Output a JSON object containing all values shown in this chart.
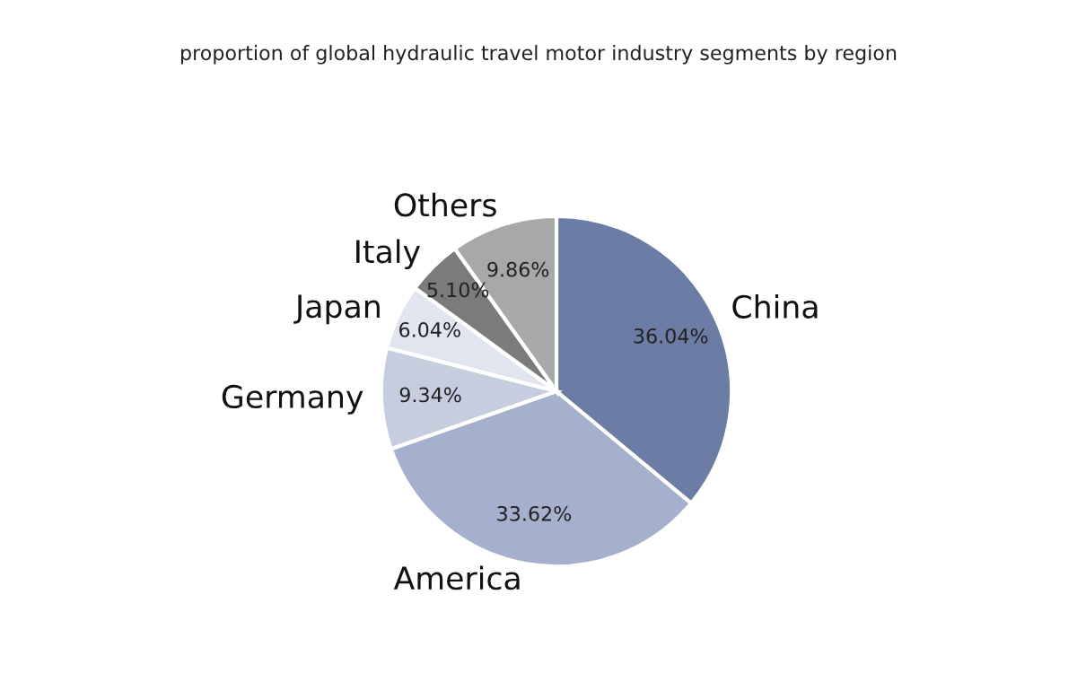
{
  "chart_data": {
    "type": "pie",
    "title": "proportion of global hydraulic travel motor industry segments by region",
    "categories": [
      "China",
      "America",
      "Germany",
      "Japan",
      "Italy",
      "Others"
    ],
    "values": [
      36.04,
      33.62,
      9.34,
      6.04,
      5.1,
      9.86
    ],
    "value_labels": [
      "36.04%",
      "33.62%",
      "9.34%",
      "6.04%",
      "5.10%",
      "9.86%"
    ],
    "colors": [
      "#6b7ca5",
      "#a5b0cc",
      "#c5cddf",
      "#e0e5f0",
      "#7b7b7b",
      "#a8a8a8"
    ]
  }
}
